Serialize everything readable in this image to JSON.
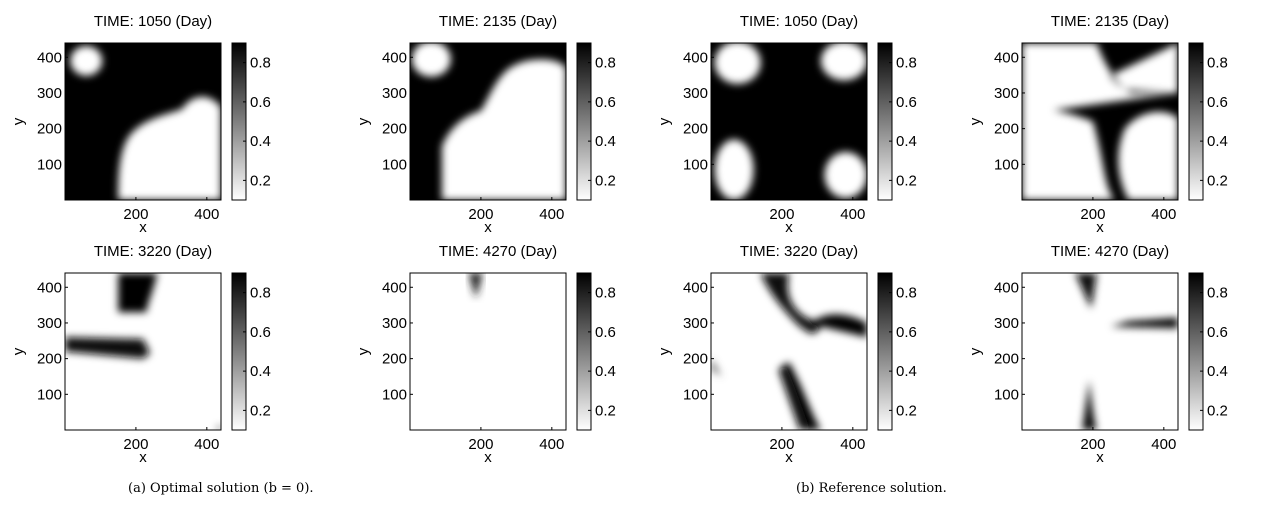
{
  "figure": {
    "caption_a": "(a) Optimal solution (b = 0).",
    "caption_b": "(b) Reference solution."
  },
  "chart_data": [
    {
      "type": "heatmap",
      "group": "a",
      "title": "TIME: 1050 (Day)",
      "xlabel": "x",
      "ylabel": "y",
      "xlim": [
        0,
        440
      ],
      "ylim": [
        0,
        440
      ],
      "xticks": [
        200,
        400
      ],
      "yticks": [
        100,
        200,
        300,
        400
      ],
      "colorbar": {
        "range": [
          0.1,
          0.9
        ],
        "ticks": [
          0.2,
          0.4,
          0.6,
          0.8
        ]
      },
      "values_description": "Saturation field 0.1 (white) to 0.9 (black)"
    },
    {
      "type": "heatmap",
      "group": "a",
      "title": "TIME: 2135 (Day)",
      "xlabel": "x",
      "ylabel": "y",
      "xlim": [
        0,
        440
      ],
      "ylim": [
        0,
        440
      ],
      "xticks": [
        200,
        400
      ],
      "yticks": [
        100,
        200,
        300,
        400
      ],
      "colorbar": {
        "range": [
          0.1,
          0.9
        ],
        "ticks": [
          0.2,
          0.4,
          0.6,
          0.8
        ]
      }
    },
    {
      "type": "heatmap",
      "group": "b",
      "title": "TIME: 1050 (Day)",
      "xlabel": "x",
      "ylabel": "y",
      "xlim": [
        0,
        440
      ],
      "ylim": [
        0,
        440
      ],
      "xticks": [
        200,
        400
      ],
      "yticks": [
        100,
        200,
        300,
        400
      ],
      "colorbar": {
        "range": [
          0.1,
          0.9
        ],
        "ticks": [
          0.2,
          0.4,
          0.6,
          0.8
        ]
      }
    },
    {
      "type": "heatmap",
      "group": "b",
      "title": "TIME: 2135 (Day)",
      "xlabel": "x",
      "ylabel": "y",
      "xlim": [
        0,
        440
      ],
      "ylim": [
        0,
        440
      ],
      "xticks": [
        200,
        400
      ],
      "yticks": [
        100,
        200,
        300,
        400
      ],
      "colorbar": {
        "range": [
          0.1,
          0.9
        ],
        "ticks": [
          0.2,
          0.4,
          0.6,
          0.8
        ]
      }
    },
    {
      "type": "heatmap",
      "group": "a",
      "title": "TIME: 3220 (Day)",
      "xlabel": "x",
      "ylabel": "y",
      "xlim": [
        0,
        440
      ],
      "ylim": [
        0,
        440
      ],
      "xticks": [
        200,
        400
      ],
      "yticks": [
        100,
        200,
        300,
        400
      ],
      "colorbar": {
        "range": [
          0.1,
          0.9
        ],
        "ticks": [
          0.2,
          0.4,
          0.6,
          0.8
        ]
      }
    },
    {
      "type": "heatmap",
      "group": "a",
      "title": "TIME: 4270 (Day)",
      "xlabel": "x",
      "ylabel": "y",
      "xlim": [
        0,
        440
      ],
      "ylim": [
        0,
        440
      ],
      "xticks": [
        200,
        400
      ],
      "yticks": [
        100,
        200,
        300,
        400
      ],
      "colorbar": {
        "range": [
          0.1,
          0.9
        ],
        "ticks": [
          0.2,
          0.4,
          0.6,
          0.8
        ]
      }
    },
    {
      "type": "heatmap",
      "group": "b",
      "title": "TIME: 3220 (Day)",
      "xlabel": "x",
      "ylabel": "y",
      "xlim": [
        0,
        440
      ],
      "ylim": [
        0,
        440
      ],
      "xticks": [
        200,
        400
      ],
      "yticks": [
        100,
        200,
        300,
        400
      ],
      "colorbar": {
        "range": [
          0.1,
          0.9
        ],
        "ticks": [
          0.2,
          0.4,
          0.6,
          0.8
        ]
      }
    },
    {
      "type": "heatmap",
      "group": "b",
      "title": "TIME: 4270 (Day)",
      "xlabel": "x",
      "ylabel": "y",
      "xlim": [
        0,
        440
      ],
      "ylim": [
        0,
        440
      ],
      "xticks": [
        200,
        400
      ],
      "yticks": [
        100,
        200,
        300,
        400
      ],
      "colorbar": {
        "range": [
          0.1,
          0.9
        ],
        "ticks": [
          0.2,
          0.4,
          0.6,
          0.8
        ]
      }
    }
  ]
}
